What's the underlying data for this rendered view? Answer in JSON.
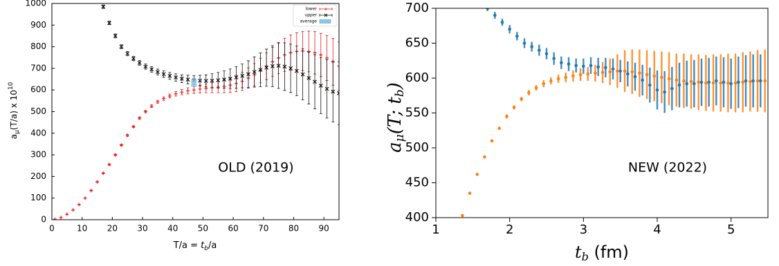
{
  "chart_data": [
    {
      "type": "errorbar",
      "x_label": [
        "T/a = ",
        "t",
        "b",
        "/a"
      ],
      "y_label": [
        "a",
        "μ",
        "(T/a) x 10",
        "10"
      ],
      "annotation": "OLD  (2019)",
      "xlim": [
        0,
        95
      ],
      "ylim": [
        0,
        1000
      ],
      "xticks": [
        0,
        10,
        20,
        30,
        40,
        50,
        60,
        70,
        80,
        90
      ],
      "yticks": [
        0,
        100,
        200,
        300,
        400,
        500,
        600,
        700,
        800,
        900,
        1000
      ],
      "legend": "upper right",
      "series": [
        {
          "name": "lower",
          "color": "#e8191a",
          "marker": "+",
          "x": [
            1,
            3,
            5,
            7,
            9,
            11,
            13,
            15,
            17,
            19,
            21,
            23,
            25,
            27,
            29,
            31,
            33,
            35,
            37,
            39,
            41,
            43,
            45,
            47,
            49,
            51,
            53,
            55,
            57,
            59,
            61,
            63,
            65,
            67,
            69,
            71,
            73,
            75,
            77,
            79,
            81,
            83,
            85,
            87,
            89,
            91,
            93,
            95
          ],
          "values": [
            2,
            10,
            25,
            45,
            70,
            100,
            135,
            175,
            215,
            255,
            300,
            345,
            390,
            430,
            470,
            500,
            525,
            545,
            560,
            572,
            582,
            590,
            596,
            600,
            604,
            607,
            610,
            613,
            617,
            622,
            630,
            640,
            655,
            670,
            690,
            710,
            730,
            748,
            762,
            772,
            778,
            780,
            778,
            772,
            762,
            748,
            730,
            710
          ],
          "errors": [
            0,
            0,
            1,
            1,
            1,
            1,
            2,
            2,
            2,
            3,
            3,
            3,
            4,
            4,
            5,
            5,
            6,
            7,
            8,
            9,
            10,
            12,
            14,
            16,
            18,
            20,
            23,
            26,
            30,
            34,
            38,
            42,
            47,
            52,
            57,
            62,
            67,
            72,
            77,
            82,
            86,
            90,
            94,
            98,
            100,
            104,
            108,
            112
          ]
        },
        {
          "name": "upper",
          "color": "#111111",
          "marker": "x",
          "x": [
            17,
            19,
            21,
            23,
            25,
            27,
            29,
            31,
            33,
            35,
            37,
            39,
            41,
            43,
            45,
            47,
            49,
            51,
            53,
            55,
            57,
            59,
            61,
            63,
            65,
            67,
            69,
            71,
            73,
            75,
            77,
            79,
            81,
            83,
            85,
            87,
            89,
            91,
            93,
            95
          ],
          "values": [
            985,
            910,
            850,
            800,
            768,
            745,
            725,
            708,
            695,
            683,
            673,
            665,
            658,
            652,
            648,
            645,
            643,
            642,
            643,
            645,
            648,
            652,
            658,
            665,
            673,
            683,
            693,
            703,
            710,
            712,
            708,
            700,
            688,
            672,
            655,
            638,
            620,
            605,
            592,
            585
          ],
          "errors": [
            8,
            8,
            9,
            9,
            10,
            10,
            11,
            12,
            13,
            14,
            15,
            16,
            17,
            18,
            20,
            22,
            25,
            28,
            32,
            36,
            40,
            45,
            50,
            55,
            62,
            70,
            78,
            86,
            95,
            105,
            110,
            112,
            115,
            118,
            120,
            125,
            130,
            135,
            140,
            145
          ]
        },
        {
          "name": "average",
          "color": "#8ec5ea",
          "marker": "box",
          "x": [
            47
          ],
          "values": [
            632
          ],
          "errors": [
            18
          ]
        }
      ]
    },
    {
      "type": "errorbar",
      "x_label": [
        "t",
        "b",
        " (fm)"
      ],
      "y_label": [
        "a",
        "μ",
        "(T; t",
        "b",
        ")"
      ],
      "annotation": "NEW  (2022)",
      "xlim": [
        1,
        5.5
      ],
      "ylim": [
        400,
        700
      ],
      "xticks": [
        1,
        2,
        3,
        4,
        5
      ],
      "yticks": [
        400,
        450,
        500,
        550,
        600,
        650,
        700
      ],
      "series": [
        {
          "color": "#1f77b4",
          "marker": "o",
          "x": [
            1.7,
            1.8,
            1.9,
            2.0,
            2.1,
            2.2,
            2.3,
            2.4,
            2.5,
            2.6,
            2.7,
            2.8,
            2.9,
            3.0,
            3.1,
            3.2,
            3.3,
            3.4,
            3.5,
            3.6,
            3.7,
            3.8,
            3.9,
            4.0,
            4.1,
            4.2,
            4.3,
            4.4,
            4.5,
            4.6,
            4.7,
            4.8,
            4.9,
            5.0,
            5.1,
            5.2,
            5.3,
            5.4
          ],
          "values": [
            700,
            690,
            680,
            670,
            660,
            650,
            645,
            640,
            635,
            628,
            622,
            620,
            618,
            617,
            618,
            616,
            615,
            613,
            610,
            606,
            602,
            597,
            590,
            583,
            580,
            585,
            590,
            592,
            592,
            594,
            594,
            596,
            594,
            592,
            594,
            596,
            596,
            596
          ],
          "errors": [
            4,
            5,
            5,
            6,
            6,
            7,
            7,
            8,
            8,
            9,
            9,
            10,
            10,
            11,
            12,
            13,
            14,
            15,
            16,
            18,
            20,
            22,
            25,
            28,
            30,
            31,
            32,
            33,
            34,
            34,
            35,
            35,
            36,
            36,
            37,
            37,
            38,
            38
          ]
        },
        {
          "color": "#ff7f0e",
          "marker": "o",
          "x": [
            1.36,
            1.46,
            1.56,
            1.66,
            1.76,
            1.86,
            1.96,
            2.06,
            2.16,
            2.26,
            2.36,
            2.46,
            2.56,
            2.66,
            2.76,
            2.86,
            2.96,
            3.06,
            3.16,
            3.26,
            3.36,
            3.46,
            3.56,
            3.66,
            3.76,
            3.86,
            3.96,
            4.06,
            4.16,
            4.26,
            4.36,
            4.46,
            4.56,
            4.66,
            4.76,
            4.86,
            4.96,
            5.06,
            5.16,
            5.26,
            5.36,
            5.46
          ],
          "values": [
            403,
            435,
            462,
            487,
            510,
            528,
            545,
            558,
            570,
            579,
            586,
            592,
            596,
            599,
            601,
            603,
            605,
            606,
            607,
            608,
            609,
            610,
            610,
            609,
            607,
            605,
            603,
            601,
            599,
            597,
            596,
            595,
            594,
            593,
            593,
            593,
            593,
            593,
            594,
            595,
            596,
            596
          ],
          "errors": [
            1,
            1,
            1,
            2,
            2,
            2,
            3,
            3,
            3,
            4,
            4,
            5,
            5,
            6,
            7,
            8,
            9,
            10,
            12,
            15,
            19,
            24,
            30,
            32,
            34,
            35,
            36,
            37,
            38,
            38,
            39,
            39,
            40,
            40,
            41,
            41,
            42,
            42,
            43,
            43,
            44,
            45
          ]
        }
      ]
    }
  ]
}
